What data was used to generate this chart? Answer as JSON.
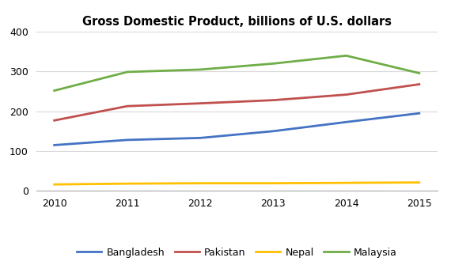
{
  "years": [
    2010,
    2011,
    2012,
    2013,
    2014,
    2015
  ],
  "series": {
    "Bangladesh": [
      115,
      128,
      133,
      150,
      173,
      195
    ],
    "Pakistan": [
      177,
      213,
      220,
      228,
      242,
      268
    ],
    "Nepal": [
      16,
      18,
      19,
      19,
      20,
      21
    ],
    "Malaysia": [
      252,
      299,
      305,
      320,
      340,
      296
    ]
  },
  "colors": {
    "Bangladesh": "#4472C4",
    "Pakistan": "#C0504D",
    "Nepal": "#FFC000",
    "Malaysia": "#70AD47"
  },
  "title": "Gross Domestic Product, billions of U.S. dollars",
  "title_fontsize": 10.5,
  "ylim": [
    0,
    400
  ],
  "yticks": [
    0,
    100,
    200,
    300,
    400
  ],
  "background_color": "#ffffff",
  "grid_color": "#d9d9d9",
  "legend_ncol": 4,
  "line_width": 2.0
}
